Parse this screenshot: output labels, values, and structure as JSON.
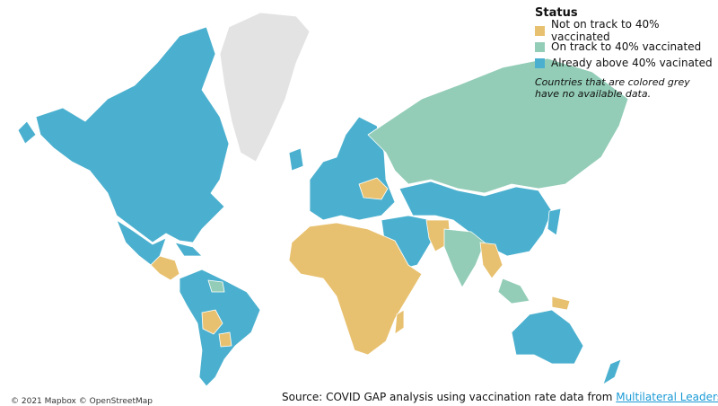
{
  "legend": {
    "title": "Status",
    "items": [
      {
        "label": "Not on track to 40% vaccinated",
        "color": "#e8c170"
      },
      {
        "label": "On track to 40% vaccinated",
        "color": "#93cdb7"
      },
      {
        "label": "Already above 40% vacinated",
        "color": "#4bb0cf"
      }
    ],
    "note": [
      "Countries that are colored grey",
      "have no available data."
    ]
  },
  "source": {
    "text": "Source: COVID GAP analysis using vaccination rate data from",
    "link": "Multilateral Leaders Task"
  },
  "attribution": "© 2021 Mapbox © OpenStreetMap"
}
